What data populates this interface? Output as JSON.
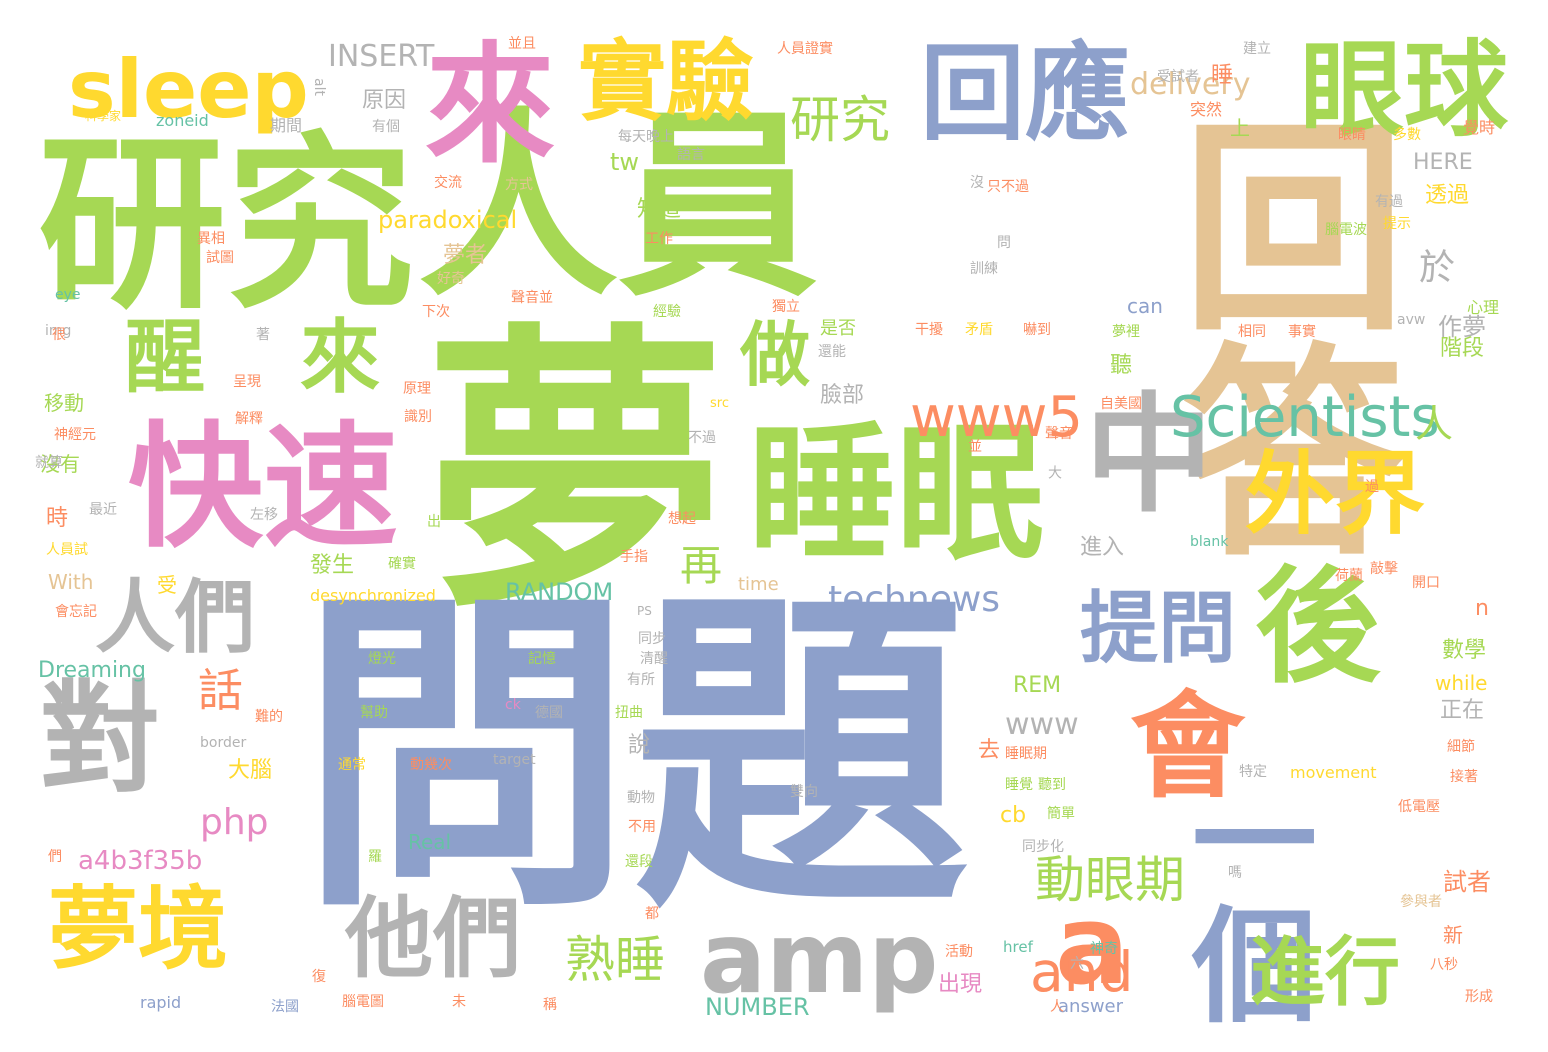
{
  "colors": {
    "green": "#a6d854",
    "blue": "#8da0cb",
    "tan": "#e5c494",
    "pink": "#e78ac3",
    "gray": "#b3b3b3",
    "yellow": "#ffd92f",
    "orange": "#fc8d62",
    "teal": "#66c2a5"
  },
  "words": [
    "夢",
    "問題",
    "回答",
    "人員",
    "研究",
    "來",
    "快速",
    "睡眠",
    "中",
    "後",
    "眼球",
    "回應",
    "實驗",
    "sleep",
    "醒",
    "來",
    "對",
    "人們",
    "夢境",
    "他們",
    "amp",
    "a",
    "會",
    "一個",
    "外界",
    "提問",
    "進行",
    "做",
    "Scientists",
    "www5",
    "研究",
    "and",
    "熟睡",
    "動眼期",
    "technews",
    "php",
    "a4b3f35b",
    "話",
    "再",
    "INSERT",
    "delivery",
    "tw",
    "paradoxical",
    "於",
    "人",
    "www",
    "RANDOM",
    "NUMBER",
    "Dreaming",
    "With",
    "REM",
    "cb",
    "n",
    "HERE",
    "can",
    "movement",
    "while",
    "Real",
    "answer",
    "rapid",
    "zoneid",
    "eye",
    "img",
    "alt",
    "border",
    "target",
    "src",
    "href",
    "ck",
    "blank",
    "desynchronized",
    "time",
    "PS",
    "avw",
    "原因",
    "期間",
    "知道",
    "夢者",
    "是否",
    "臉部",
    "作夢",
    "階段",
    "發生",
    "進入",
    "出現",
    "數學",
    "正在",
    "大腦",
    "說",
    "受",
    "移動",
    "沒有",
    "時",
    "去",
    "睡眠期",
    "試者",
    "新",
    "透過",
    "上",
    "突然",
    "受試者",
    "睡",
    "建立",
    "只不過",
    "訓練",
    "問",
    "沒",
    "並且",
    "人員證實",
    "科學家",
    "有個",
    "每天晚上",
    "語言",
    "交流",
    "方式",
    "異相",
    "試圖",
    "好奇",
    "下次",
    "工作",
    "經驗",
    "干擾",
    "矛盾",
    "嚇到",
    "獨立",
    "夢裡",
    "相同",
    "事實",
    "眼睛",
    "多數",
    "覺時",
    "提示",
    "有過",
    "腦電波",
    "心理",
    "聲音並",
    "很",
    "著",
    "呈現",
    "還能",
    "聽",
    "自美國",
    "原理",
    "識別",
    "解釋",
    "神經元",
    "聲音",
    "就算",
    "不過",
    "最近",
    "左移",
    "出",
    "大",
    "想起",
    "人員試",
    "手指",
    "確實",
    "敲擊",
    "荷蘭",
    "開口",
    "會忘記",
    "同步",
    "燈光",
    "清醒",
    "記憶",
    "有所",
    "扭曲",
    "德國",
    "幫助",
    "難的",
    "通常",
    "動幾次",
    "聽到",
    "睡覺",
    "細節",
    "接著",
    "特定",
    "雙向",
    "簡單",
    "低電壓",
    "動物",
    "不用",
    "同步化",
    "嗎",
    "們",
    "羅",
    "還段",
    "都",
    "參與者",
    "活動",
    "神奇",
    "八秒",
    "形成",
    "六",
    "復",
    "腦電圖",
    "未",
    "稱",
    "法國",
    "並",
    "過",
    "人"
  ]
}
